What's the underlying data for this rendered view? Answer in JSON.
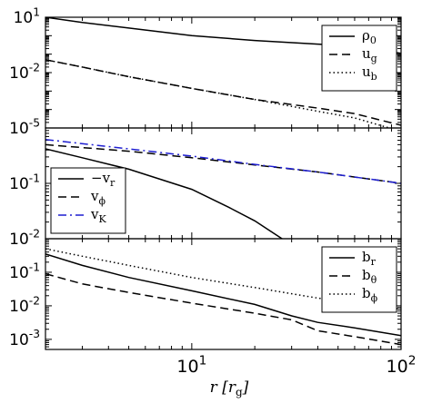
{
  "chart_data": [
    {
      "type": "line",
      "log_x": true,
      "log_y": true,
      "xlim": [
        2,
        100
      ],
      "ylim": [
        1e-05,
        10
      ],
      "y_ticks": [
        {
          "v": 10,
          "base": "10",
          "exp": "1"
        },
        {
          "v": 0.01,
          "base": "10",
          "exp": "-2"
        },
        {
          "v": 1e-05,
          "base": "10",
          "exp": "-5"
        }
      ],
      "legend": "top-right",
      "series": [
        {
          "name": "ρ",
          "sub": "0",
          "style": "solid",
          "color": "#000000",
          "x": [
            2,
            3,
            5,
            10,
            20,
            40,
            60,
            100
          ],
          "y": [
            10,
            5.2,
            2.6,
            1.0,
            0.55,
            0.35,
            0.28,
            0.11
          ]
        },
        {
          "name": "u",
          "sub": "g",
          "style": "dashed",
          "color": "#000000",
          "x": [
            2,
            3,
            5,
            10,
            20,
            40,
            60,
            100
          ],
          "y": [
            0.05,
            0.02,
            0.006,
            0.0014,
            0.00035,
            0.00012,
            6e-05,
            1.4e-05
          ]
        },
        {
          "name": "u",
          "sub": "b",
          "style": "dotted",
          "color": "#000000",
          "x": [
            2,
            3,
            5,
            10,
            20,
            40,
            60,
            100
          ],
          "y": [
            0.05,
            0.02,
            0.006,
            0.0014,
            0.00035,
            8e-05,
            3.5e-05,
            6.5e-06
          ]
        }
      ]
    },
    {
      "type": "line",
      "log_x": true,
      "log_y": true,
      "xlim": [
        2,
        100
      ],
      "ylim": [
        0.01,
        1
      ],
      "y_ticks": [
        {
          "v": 0.1,
          "base": "10",
          "exp": "-1"
        },
        {
          "v": 0.01,
          "base": "10",
          "exp": "-2"
        }
      ],
      "legend": "bottom-left",
      "series": [
        {
          "name": "−v",
          "sub": "r",
          "style": "solid",
          "color": "#000000",
          "x": [
            2,
            3,
            5,
            10,
            15,
            20,
            27
          ],
          "y": [
            0.42,
            0.29,
            0.18,
            0.078,
            0.037,
            0.021,
            0.01
          ]
        },
        {
          "name": "v",
          "sub": "ϕ",
          "style": "dashed",
          "color": "#000000",
          "x": [
            2,
            5,
            10,
            20,
            40,
            100
          ],
          "y": [
            0.5,
            0.38,
            0.29,
            0.215,
            0.16,
            0.1
          ]
        },
        {
          "name": "v",
          "sub": "K",
          "style": "dashdot",
          "color": "#1f1fd1",
          "x": [
            2,
            5,
            10,
            20,
            40,
            100
          ],
          "y": [
            0.62,
            0.42,
            0.31,
            0.22,
            0.16,
            0.1
          ]
        }
      ]
    },
    {
      "type": "line",
      "log_x": true,
      "log_y": true,
      "xlim": [
        2,
        100
      ],
      "ylim": [
        0.0005,
        1
      ],
      "y_ticks": [
        {
          "v": 0.1,
          "base": "10",
          "exp": "-1"
        },
        {
          "v": 0.01,
          "base": "10",
          "exp": "-2"
        },
        {
          "v": 0.001,
          "base": "10",
          "exp": "-3"
        }
      ],
      "x_ticks": [
        {
          "v": 10,
          "base": "10",
          "exp": "1"
        },
        {
          "v": 100,
          "base": "10",
          "exp": "2"
        }
      ],
      "xlabel": "r [r_g]",
      "legend": "top-right",
      "series": [
        {
          "name": "b",
          "sub": "r",
          "style": "solid",
          "color": "#000000",
          "x": [
            2,
            3,
            5,
            10,
            20,
            30,
            40,
            60,
            100
          ],
          "y": [
            0.35,
            0.16,
            0.07,
            0.028,
            0.011,
            0.005,
            0.0032,
            0.0022,
            0.0013
          ]
        },
        {
          "name": "b",
          "sub": "θ",
          "style": "dashed",
          "color": "#000000",
          "x": [
            2,
            3,
            5,
            10,
            20,
            30,
            40,
            60,
            100
          ],
          "y": [
            0.09,
            0.045,
            0.025,
            0.012,
            0.006,
            0.0038,
            0.0018,
            0.0012,
            0.0007
          ]
        },
        {
          "name": "b",
          "sub": "ϕ",
          "style": "dotted",
          "color": "#000000",
          "x": [
            2,
            3,
            5,
            10,
            20,
            40,
            100
          ],
          "y": [
            0.5,
            0.3,
            0.16,
            0.07,
            0.035,
            0.017,
            0.008
          ]
        }
      ]
    }
  ]
}
